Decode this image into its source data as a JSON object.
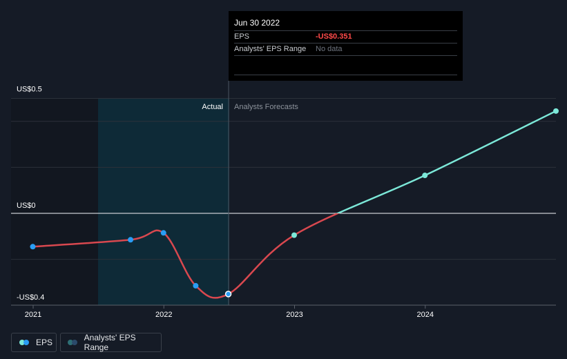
{
  "colors": {
    "background": "#151b26",
    "actual_region": "#0e2a37",
    "past_region": "#121720",
    "eps_past_line": "#d9484f",
    "eps_forecast_line": "#7ce8d8",
    "point_actual": "#2a9df4",
    "point_forecast": "#7ce8d8",
    "gridline": "#2c313a",
    "zero_line": "#c9ccd1"
  },
  "tooltip": {
    "date": "Jun 30 2022",
    "rows": [
      {
        "label": "EPS",
        "value": "-US$0.351"
      },
      {
        "label": "Analysts' EPS Range",
        "value": "No data"
      }
    ]
  },
  "region_labels": {
    "actual": "Actual",
    "forecast": "Analysts Forecasts"
  },
  "legend": {
    "eps": {
      "label": "EPS",
      "icon": "dual-dot-icon",
      "colors": [
        "#7ce8d8",
        "#2a9df4"
      ]
    },
    "range": {
      "label": "Analysts' EPS Range",
      "icon": "dual-dot-icon",
      "colors": [
        "#2e6f75",
        "#2b4a6a"
      ]
    }
  },
  "chart_data": {
    "type": "line",
    "x_tick_labels": [
      "2021",
      "2022",
      "2023",
      "2024"
    ],
    "y_tick_labels": [
      "US$0.5",
      "US$0",
      "-US$0.4"
    ],
    "ylim": [
      -0.4,
      0.5
    ],
    "xlim": [
      "2021-01-01",
      "2024-12-31"
    ],
    "actual_through": "2022-06-30",
    "series": [
      {
        "name": "EPS",
        "points": [
          {
            "x": "2020-12-31",
            "y": -0.145,
            "kind": "actual"
          },
          {
            "x": "2021-09-30",
            "y": -0.115,
            "kind": "actual"
          },
          {
            "x": "2021-12-31",
            "y": -0.085,
            "kind": "actual"
          },
          {
            "x": "2022-03-31",
            "y": -0.315,
            "kind": "actual"
          },
          {
            "x": "2022-06-30",
            "y": -0.351,
            "kind": "actual"
          },
          {
            "x": "2022-12-31",
            "y": -0.095,
            "kind": "forecast"
          },
          {
            "x": "2023-12-31",
            "y": 0.165,
            "kind": "forecast"
          },
          {
            "x": "2024-12-31",
            "y": 0.445,
            "kind": "forecast"
          }
        ]
      }
    ],
    "grid": true
  }
}
